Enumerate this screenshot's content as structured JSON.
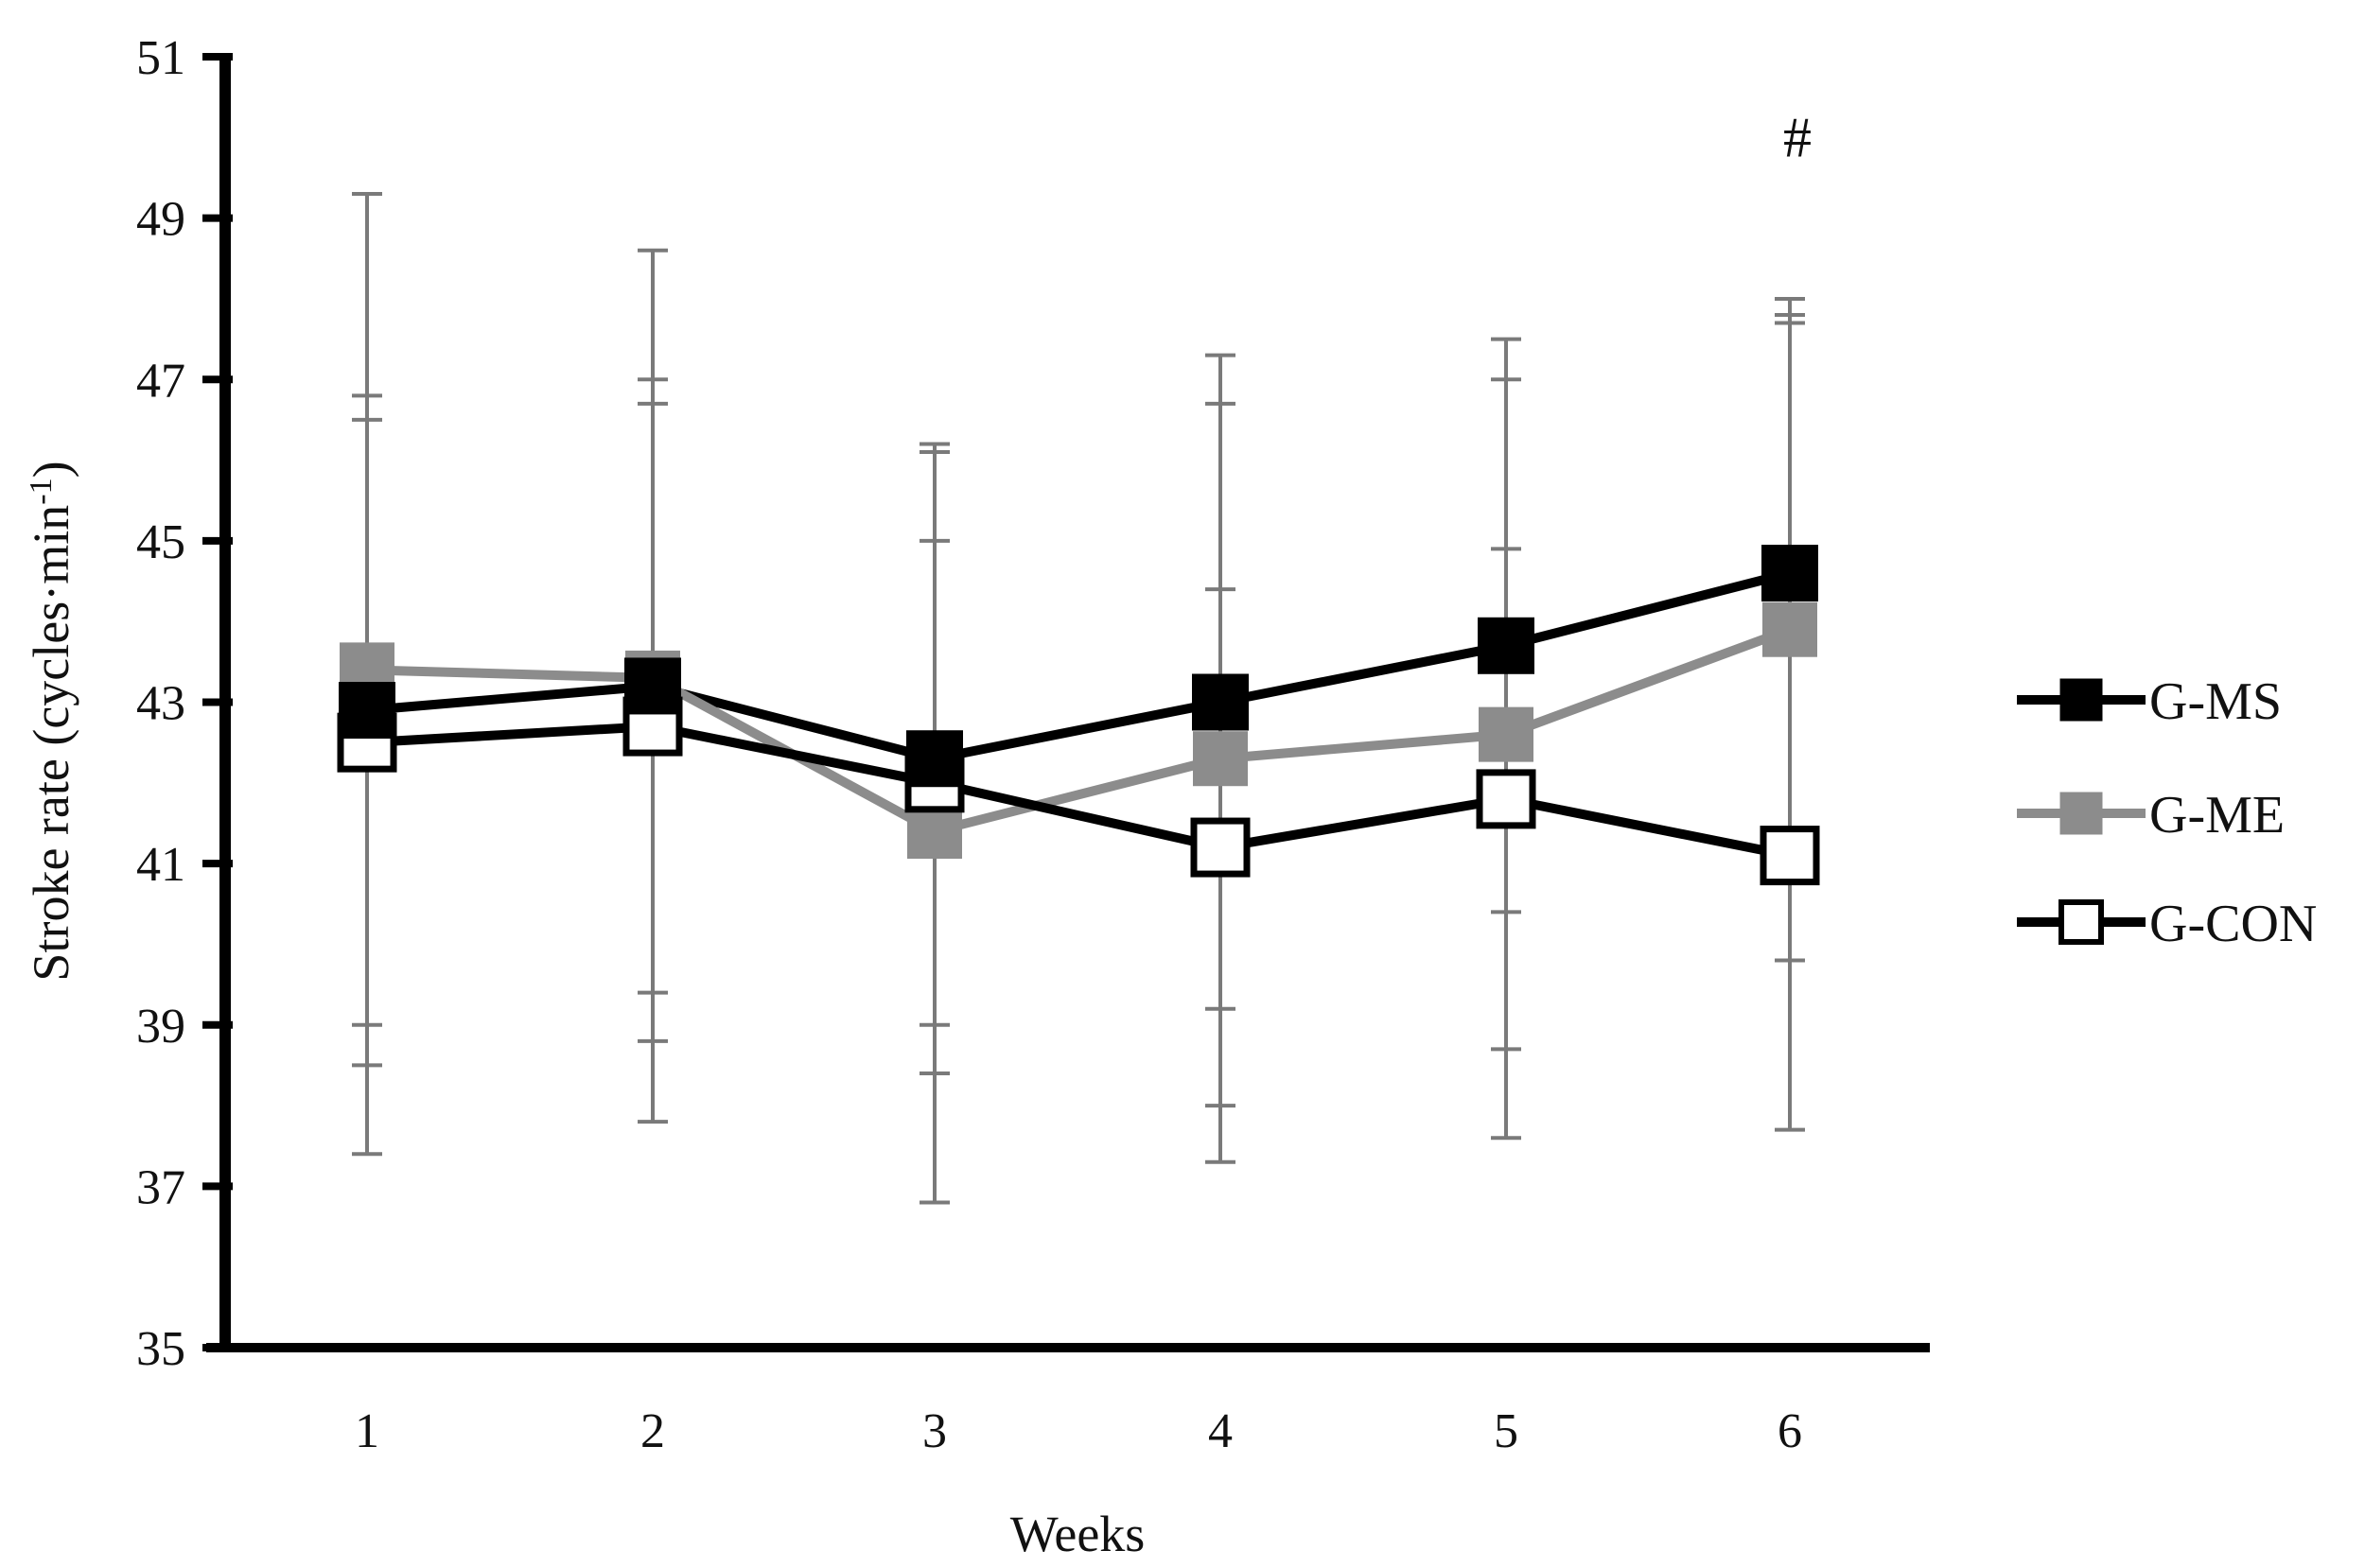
{
  "chart_data": {
    "type": "line",
    "title": "",
    "xlabel": "Weeks",
    "ylabel": "Stroke rate (cycles·min",
    "ylabel_sup": "-1",
    "ylabel_close": ")",
    "ylim": [
      35,
      51
    ],
    "yticks": [
      35,
      37,
      39,
      41,
      43,
      45,
      47,
      49,
      51
    ],
    "categories": [
      "1",
      "2",
      "3",
      "4",
      "5",
      "6"
    ],
    "grid": false,
    "legend_position": "right",
    "series": [
      {
        "name": "G-MS",
        "marker": "filled-square",
        "line_color": "#000000",
        "marker_fill": "#000000",
        "values": [
          42.9,
          43.2,
          42.3,
          43.0,
          43.7,
          44.6
        ],
        "err_low": [
          38.5,
          38.8,
          38.4,
          38.0,
          38.7,
          39.8
        ],
        "err_high": [
          46.8,
          47.0,
          46.2,
          47.3,
          47.5,
          48.0
        ]
      },
      {
        "name": "G-ME",
        "marker": "gray-square",
        "line_color": "#8c8c8c",
        "marker_fill": "#8c8c8c",
        "values": [
          43.4,
          43.3,
          41.4,
          42.3,
          42.6,
          43.9
        ],
        "err_low": [
          37.4,
          37.8,
          36.8,
          37.3,
          37.6,
          37.7
        ],
        "err_high": [
          49.3,
          48.6,
          46.1,
          46.7,
          47.0,
          47.7
        ]
      },
      {
        "name": "G-CON",
        "marker": "open-square",
        "line_color": "#000000",
        "marker_fill": "#ffffff",
        "values": [
          42.5,
          42.7,
          42.0,
          41.2,
          41.8,
          41.1
        ],
        "err_low": [
          39.0,
          39.4,
          39.0,
          39.2,
          40.4,
          39.8
        ],
        "err_high": [
          46.5,
          46.7,
          45.0,
          44.4,
          44.9,
          47.8
        ]
      }
    ],
    "error_bar_color": "#7a7a7a",
    "annotations": [
      {
        "text": "#",
        "category": "6",
        "y": 50.0
      }
    ]
  }
}
